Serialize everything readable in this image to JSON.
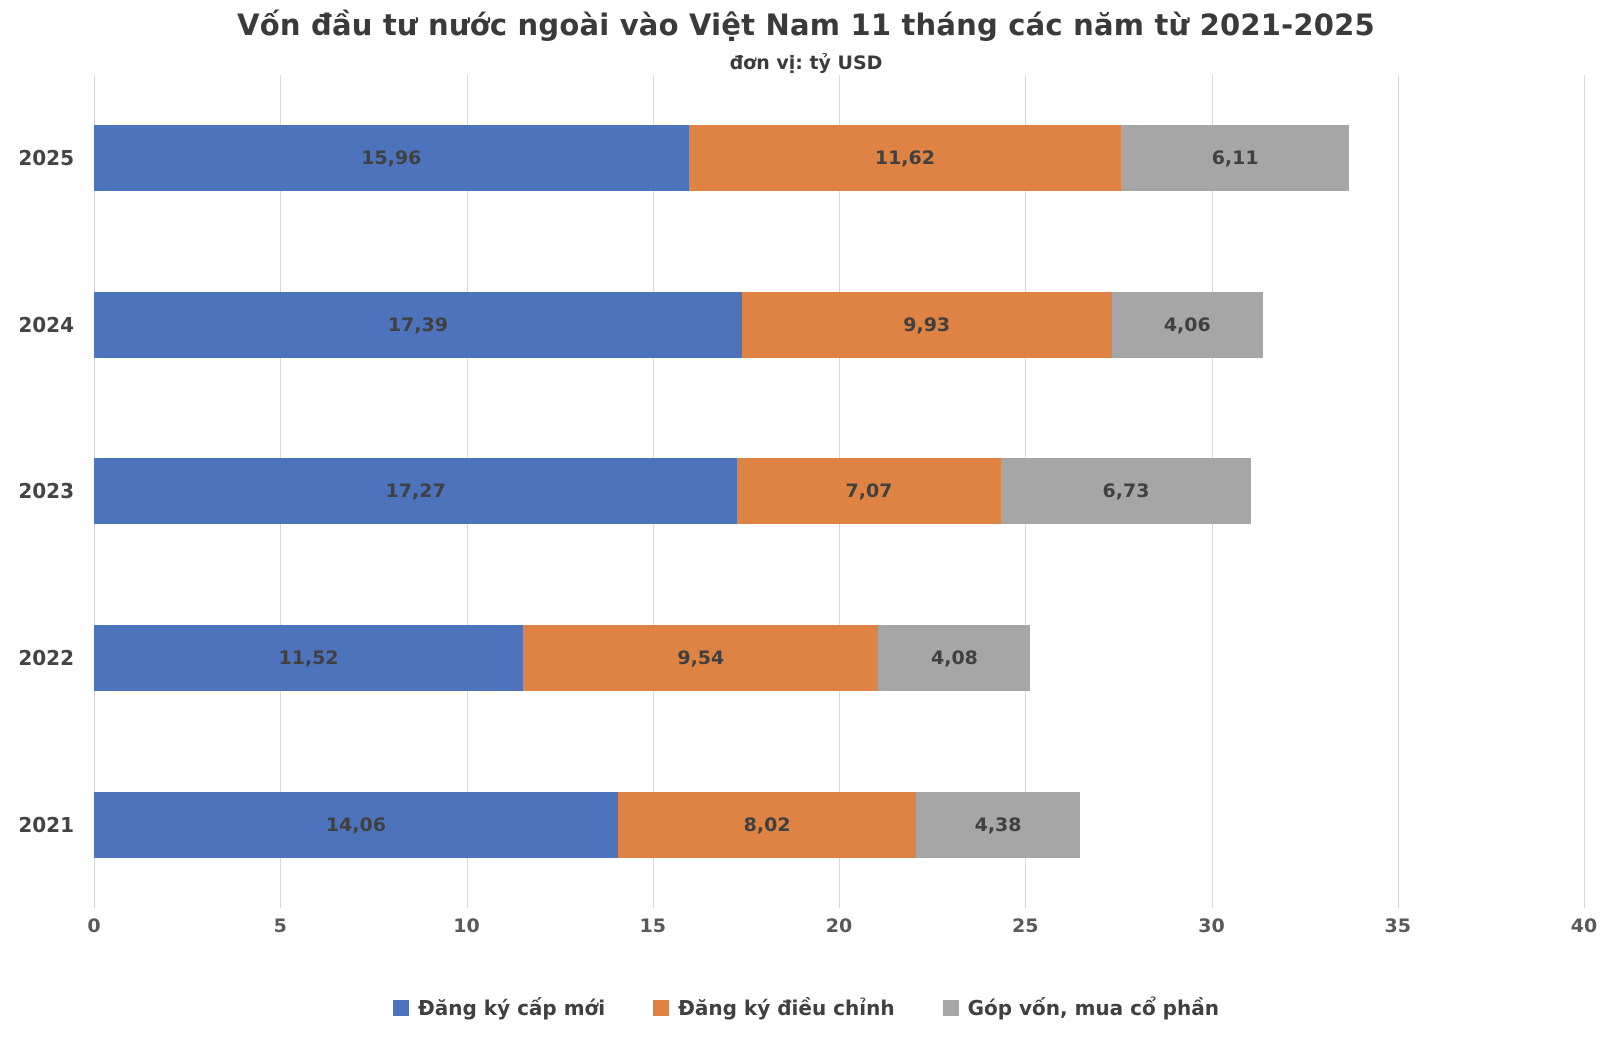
{
  "title": "Vốn đầu tư nước ngoài vào Việt Nam 11 tháng các năm từ 2021-2025",
  "subtitle": "đơn vị: tỷ USD",
  "colors": {
    "series_blue": "#4d73bd",
    "series_orange": "#de8343",
    "series_gray": "#a6a6a6",
    "gridline": "#d9d9d9",
    "bar_label": "#404040",
    "tick_label": "#595959"
  },
  "chart_data": {
    "type": "bar",
    "orientation": "horizontal",
    "stacked": true,
    "grid": true,
    "legend_position": "bottom",
    "decimal_separator": ",",
    "categories": [
      "2025",
      "2024",
      "2023",
      "2022",
      "2021"
    ],
    "series": [
      {
        "name": "Đăng ký cấp mới",
        "color": "#4d73bd",
        "values": [
          15.96,
          17.39,
          17.27,
          11.52,
          14.06
        ]
      },
      {
        "name": "Đăng ký điều chỉnh",
        "color": "#de8343",
        "values": [
          11.62,
          9.93,
          7.07,
          9.54,
          8.02
        ]
      },
      {
        "name": "Góp vốn, mua cổ phần",
        "color": "#a6a6a6",
        "values": [
          6.11,
          4.06,
          6.73,
          4.08,
          4.38
        ]
      }
    ],
    "xlim": [
      0,
      40
    ],
    "xticks": [
      0,
      5,
      10,
      15,
      20,
      25,
      30,
      35,
      40
    ]
  }
}
